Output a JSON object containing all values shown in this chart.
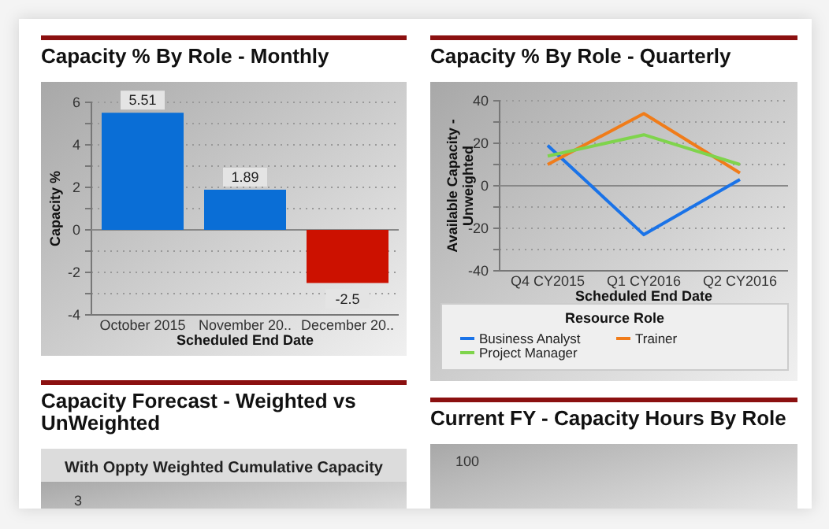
{
  "chart_data": [
    {
      "type": "bar",
      "title": "Capacity % By Role - Monthly",
      "xlabel": "Scheduled End Date",
      "ylabel": "Capacity %",
      "categories": [
        "October 2015",
        "November 20..",
        "December 20.."
      ],
      "values": [
        5.51,
        1.89,
        -2.5
      ],
      "colors": [
        "#0a6ed6",
        "#0a6ed6",
        "#cc1100"
      ],
      "data_labels": true,
      "ylim": [
        -4,
        6
      ],
      "yticks": [
        -4,
        {
          "value": -3,
          "label": null
        },
        -2,
        {
          "value": -1,
          "label": null
        },
        0,
        {
          "value": 1,
          "label": null
        },
        2,
        {
          "value": 3,
          "label": null
        },
        4,
        {
          "value": 5,
          "label": null
        },
        6
      ],
      "grid": "y"
    },
    {
      "type": "line",
      "title": "Capacity % By Role - Quarterly",
      "xlabel": "Scheduled End Date",
      "ylabel": "Available Capacity - Unweighted",
      "legend_title": "Resource Role",
      "legend": "bottom",
      "categories": [
        "Q4 CY2015",
        "Q1 CY2016",
        "Q2 CY2016"
      ],
      "series": [
        {
          "name": "Business Analyst",
          "color": "#1a73e8",
          "values": [
            19,
            -23,
            3
          ]
        },
        {
          "name": "Trainer",
          "color": "#f07c1a",
          "values": [
            10,
            34,
            6
          ]
        },
        {
          "name": "Project Manager",
          "color": "#7fd44c",
          "values": [
            14,
            24,
            10
          ]
        }
      ],
      "ylim": [
        -40,
        40
      ],
      "yticks": [
        -40,
        {
          "value": -30,
          "label": null
        },
        -20,
        {
          "value": -10,
          "label": null
        },
        0,
        {
          "value": 10,
          "label": null
        },
        20,
        {
          "value": 30,
          "label": null
        },
        40
      ],
      "grid": "y",
      "marker": "none"
    },
    {
      "type": "other",
      "title": "Capacity Forecast - Weighted vs UnWeighted",
      "subtitle": "With Oppty Weighted Cumulative Capacity",
      "annotations": [
        "3"
      ]
    },
    {
      "type": "other",
      "title": "Current FY - Capacity Hours By Role",
      "annotations": [
        "100"
      ]
    }
  ]
}
